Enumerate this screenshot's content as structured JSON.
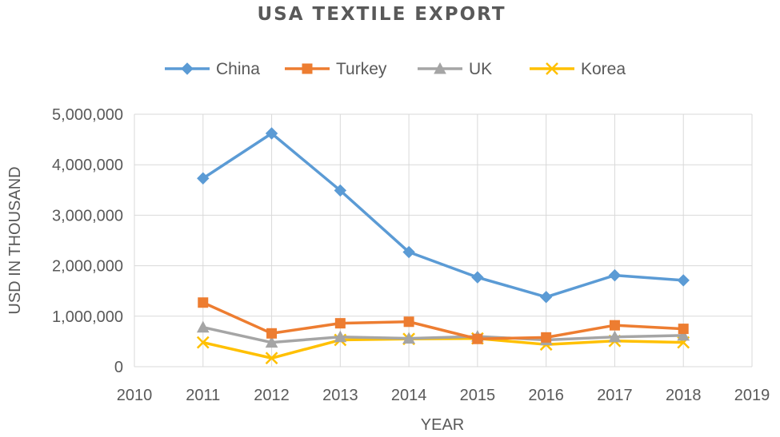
{
  "chart_data": {
    "type": "line",
    "title": "USA TEXTILE EXPORT",
    "xlabel": "YEAR",
    "ylabel": "USD IN THOUSAND",
    "x": [
      2011,
      2012,
      2013,
      2014,
      2015,
      2016,
      2017,
      2018
    ],
    "xlim": [
      2010,
      2019
    ],
    "xticks": [
      "2010",
      "2011",
      "2012",
      "2013",
      "2014",
      "2015",
      "2016",
      "2017",
      "2018",
      "2019"
    ],
    "ylim": [
      0,
      5000000
    ],
    "yticks": [
      "0",
      "1,000,000",
      "2,000,000",
      "3,000,000",
      "4,000,000",
      "5,000,000"
    ],
    "grid": true,
    "legend_position": "top",
    "series": [
      {
        "name": "China",
        "color": "#5B9BD5",
        "marker": "diamond",
        "values": [
          3730000,
          4620000,
          3490000,
          2270000,
          1770000,
          1380000,
          1810000,
          1710000
        ]
      },
      {
        "name": "Turkey",
        "color": "#ED7D31",
        "marker": "square",
        "values": [
          1270000,
          660000,
          860000,
          890000,
          550000,
          580000,
          820000,
          750000
        ]
      },
      {
        "name": "UK",
        "color": "#A5A5A5",
        "marker": "triangle",
        "values": [
          780000,
          480000,
          590000,
          560000,
          600000,
          530000,
          590000,
          620000
        ]
      },
      {
        "name": "Korea",
        "color": "#FFC000",
        "marker": "x",
        "values": [
          480000,
          170000,
          530000,
          550000,
          560000,
          440000,
          510000,
          480000
        ]
      }
    ]
  }
}
